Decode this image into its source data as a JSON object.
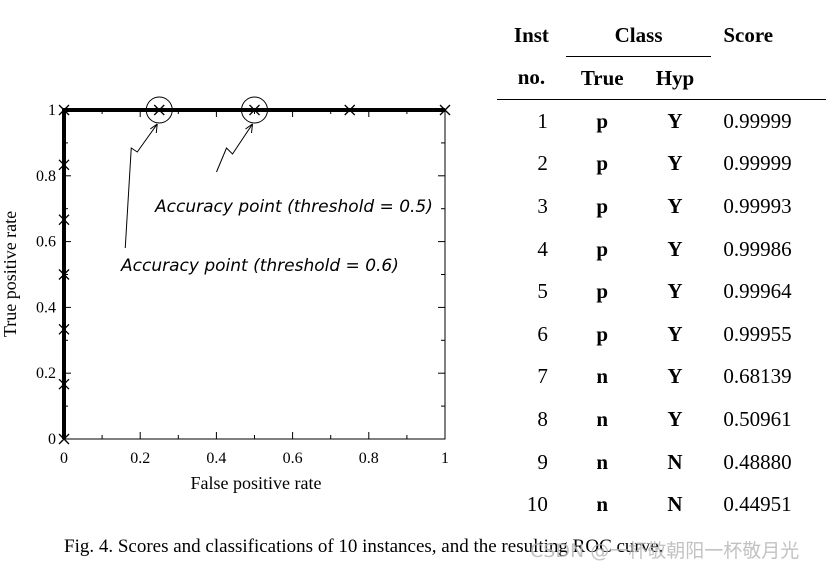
{
  "chart_data": {
    "type": "line",
    "xlabel": "False positive rate",
    "ylabel": "True positive rate",
    "xlim": [
      0,
      1
    ],
    "ylim": [
      0,
      1
    ],
    "x_ticks": [
      "0",
      "0.2",
      "0.4",
      "0.6",
      "0.8",
      "1"
    ],
    "y_ticks": [
      "0",
      "0.2",
      "0.4",
      "0.6",
      "0.8",
      "1"
    ],
    "grid": false,
    "series": [
      {
        "points": [
          {
            "x": 0,
            "y": 0
          },
          {
            "x": 0,
            "y": 0.1667
          },
          {
            "x": 0,
            "y": 0.3333
          },
          {
            "x": 0,
            "y": 0.5
          },
          {
            "x": 0,
            "y": 0.6667
          },
          {
            "x": 0,
            "y": 0.8333
          },
          {
            "x": 0,
            "y": 1
          },
          {
            "x": 0.25,
            "y": 1
          },
          {
            "x": 0.5,
            "y": 1
          },
          {
            "x": 0.75,
            "y": 1
          },
          {
            "x": 1,
            "y": 1
          }
        ]
      }
    ],
    "annotations": [
      {
        "text": "Accuracy point (threshold = 0.5)",
        "x": 0.5,
        "y": 1
      },
      {
        "text": "Accuracy point (threshold = 0.6)",
        "x": 0.25,
        "y": 1
      }
    ]
  },
  "table": {
    "headers": {
      "inst": "Inst",
      "inst2": "no.",
      "class": "Class",
      "true": "True",
      "hyp": "Hyp",
      "score": "Score"
    },
    "rows": [
      {
        "inst": "1",
        "true": "p",
        "hyp": "Y",
        "score": "0.99999"
      },
      {
        "inst": "2",
        "true": "p",
        "hyp": "Y",
        "score": "0.99999"
      },
      {
        "inst": "3",
        "true": "p",
        "hyp": "Y",
        "score": "0.99993"
      },
      {
        "inst": "4",
        "true": "p",
        "hyp": "Y",
        "score": "0.99986"
      },
      {
        "inst": "5",
        "true": "p",
        "hyp": "Y",
        "score": "0.99964"
      },
      {
        "inst": "6",
        "true": "p",
        "hyp": "Y",
        "score": "0.99955"
      },
      {
        "inst": "7",
        "true": "n",
        "hyp": "Y",
        "score": "0.68139"
      },
      {
        "inst": "8",
        "true": "n",
        "hyp": "Y",
        "score": "0.50961"
      },
      {
        "inst": "9",
        "true": "n",
        "hyp": "N",
        "score": "0.48880"
      },
      {
        "inst": "10",
        "true": "n",
        "hyp": "N",
        "score": "0.44951"
      }
    ]
  },
  "caption": "Fig. 4.  Scores and classifications of 10 instances, and the resulting ROC curve.",
  "watermark": "CSDN @一杯敬朝阳一杯敬月光"
}
